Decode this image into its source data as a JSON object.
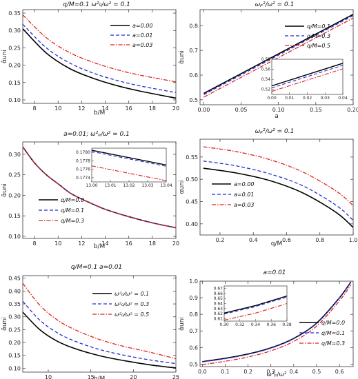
{
  "colors": {
    "black": "#000000",
    "blue": "#1f2fd6",
    "red": "#e0201b",
    "frame": "#333333"
  },
  "chart_data": [
    {
      "type": "line",
      "title": "q/M=0.1  ω²₀/ω² = 0.1",
      "xlabel": "b/M",
      "ylabel": "α̂uni",
      "xlim": [
        7,
        20
      ],
      "ylim": [
        0.09,
        0.36
      ],
      "xticks": [
        8,
        10,
        12,
        14,
        16,
        18,
        20
      ],
      "yticks": [
        0.1,
        0.15,
        0.2,
        0.25,
        0.3,
        0.35
      ],
      "legend_position": "top-right",
      "series": [
        {
          "name": "a=0.00",
          "color": "#000000",
          "dash": "solid",
          "x": [
            7,
            9,
            11,
            13,
            15,
            17,
            20
          ],
          "y": [
            0.305,
            0.235,
            0.19,
            0.162,
            0.141,
            0.125,
            0.105
          ]
        },
        {
          "name": "a=0.01",
          "color": "#1f2fd6",
          "dash": "dashed",
          "x": [
            7,
            9,
            11,
            13,
            15,
            17,
            20
          ],
          "y": [
            0.318,
            0.25,
            0.206,
            0.177,
            0.156,
            0.14,
            0.121
          ]
        },
        {
          "name": "a=0.03",
          "color": "#e0201b",
          "dash": "dashdot",
          "x": [
            7,
            9,
            11,
            13,
            15,
            17,
            20
          ],
          "y": [
            0.345,
            0.279,
            0.236,
            0.208,
            0.187,
            0.171,
            0.152
          ]
        }
      ]
    },
    {
      "type": "line",
      "title": "ωₚ²/ω² = 0.1",
      "xlabel": "a",
      "ylabel": "α̂uni",
      "xlim": [
        -0.005,
        0.2
      ],
      "ylim": [
        0.48,
        0.865
      ],
      "xticks": [
        0.0,
        0.05,
        0.1,
        0.15,
        0.2
      ],
      "yticks": [
        0.5,
        0.6,
        0.7,
        0.8
      ],
      "legend_position": "top-right",
      "series": [
        {
          "name": "q/M=0.1",
          "color": "#000000",
          "dash": "solid",
          "x": [
            0,
            0.2
          ],
          "y": [
            0.526,
            0.846
          ]
        },
        {
          "name": "q/M=0.3",
          "color": "#1f2fd6",
          "dash": "dashed",
          "x": [
            0,
            0.2
          ],
          "y": [
            0.521,
            0.841
          ]
        },
        {
          "name": "q/M=0.5",
          "color": "#e0201b",
          "dash": "dashdot",
          "x": [
            0,
            0.2
          ],
          "y": [
            0.511,
            0.831
          ]
        }
      ],
      "inset": {
        "xlim": [
          0,
          0.04
        ],
        "ylim": [
          0.51,
          0.58
        ],
        "xticks": [
          "0.00",
          "0.01",
          "0.02",
          "0.03",
          "0.04"
        ],
        "yticks": [
          "0.52",
          "0.54",
          "0.56",
          "0.58"
        ],
        "series": [
          {
            "color": "#000000",
            "dash": "solid",
            "x": [
              0,
              0.04
            ],
            "y": [
              0.527,
              0.572
            ]
          },
          {
            "color": "#1f2fd6",
            "dash": "dashed",
            "x": [
              0,
              0.04
            ],
            "y": [
              0.523,
              0.568
            ]
          },
          {
            "color": "#e0201b",
            "dash": "dashdot",
            "x": [
              0,
              0.04
            ],
            "y": [
              0.516,
              0.561
            ]
          }
        ]
      }
    },
    {
      "type": "line",
      "title": "a=0.01;  ω²ₚ/ω² = 0.1",
      "xlabel": "b/M",
      "ylabel": "α̂uni",
      "xlim": [
        7,
        20
      ],
      "ylim": [
        0.095,
        0.33
      ],
      "xticks": [
        8,
        10,
        12,
        14,
        16,
        18,
        20
      ],
      "yticks": [
        0.1,
        0.15,
        0.2,
        0.25,
        0.3
      ],
      "legend_position": "bottom-left",
      "series": [
        {
          "name": "q/M=0.0",
          "color": "#000000",
          "dash": "solid",
          "x": [
            7,
            8,
            9,
            10,
            11,
            12,
            13,
            14,
            16,
            18,
            20
          ],
          "y": [
            0.318,
            0.279,
            0.25,
            0.228,
            0.206,
            0.191,
            0.178,
            0.166,
            0.148,
            0.133,
            0.121
          ]
        },
        {
          "name": "q/M=0.1",
          "color": "#1f2fd6",
          "dash": "dashed",
          "x": [
            7,
            8,
            9,
            10,
            11,
            12,
            13,
            14,
            16,
            18,
            20
          ],
          "y": [
            0.318,
            0.279,
            0.25,
            0.228,
            0.206,
            0.191,
            0.178,
            0.166,
            0.148,
            0.133,
            0.121
          ]
        },
        {
          "name": "q/M=0.3",
          "color": "#e0201b",
          "dash": "dashdot",
          "x": [
            7,
            8,
            9,
            10,
            11,
            12,
            13,
            14,
            16,
            18,
            20
          ],
          "y": [
            0.3178,
            0.2788,
            0.2498,
            0.2278,
            0.2058,
            0.1908,
            0.1778,
            0.1658,
            0.1478,
            0.1328,
            0.1208
          ]
        }
      ],
      "inset": {
        "xlim": [
          13.0,
          13.04
        ],
        "ylim": [
          0.1773,
          0.1781
        ],
        "xticks": [
          "13.00",
          "13.01",
          "13.02",
          "13.03",
          "13.04"
        ],
        "yticks": [
          "0.1774",
          "0.1776",
          "0.1778",
          "0.1780"
        ],
        "series": [
          {
            "color": "#000000",
            "dash": "solid",
            "x": [
              13.0,
              13.04
            ],
            "y": [
              0.17805,
              0.1777
            ]
          },
          {
            "color": "#1f2fd6",
            "dash": "dashed",
            "x": [
              13.0,
              13.04
            ],
            "y": [
              0.17802,
              0.17767
            ]
          },
          {
            "color": "#e0201b",
            "dash": "dashdot",
            "x": [
              13.0,
              13.04
            ],
            "y": [
              0.17768,
              0.17733
            ]
          }
        ]
      }
    },
    {
      "type": "line",
      "title": "ωₚ²/ω² = 0.1",
      "xlabel": "q/M",
      "ylabel": "αuni",
      "xlim": [
        0.08,
        1.0
      ],
      "ylim": [
        0.375,
        0.59
      ],
      "xticks": [
        0.2,
        0.4,
        0.6,
        0.8,
        1.0
      ],
      "yticks": [
        0.4,
        0.45,
        0.5,
        0.55
      ],
      "legend_position": "bottom-left",
      "series": [
        {
          "name": "a=0.00",
          "color": "#000000",
          "dash": "solid",
          "x": [
            0.1,
            0.3,
            0.5,
            0.7,
            0.9,
            1.0
          ],
          "y": [
            0.525,
            0.514,
            0.497,
            0.469,
            0.425,
            0.392
          ]
        },
        {
          "name": "a=0.01",
          "color": "#1f2fd6",
          "dash": "dashed",
          "x": [
            0.1,
            0.3,
            0.5,
            0.7,
            0.9,
            1.0
          ],
          "y": [
            0.541,
            0.53,
            0.512,
            0.485,
            0.441,
            0.408
          ]
        },
        {
          "name": "a=0.03",
          "color": "#e0201b",
          "dash": "dashdot",
          "x": [
            0.1,
            0.3,
            0.5,
            0.7,
            0.9,
            1.0
          ],
          "y": [
            0.573,
            0.562,
            0.544,
            0.516,
            0.473,
            0.441
          ]
        }
      ]
    },
    {
      "type": "line",
      "title": "q/M=0.1   a=0.01",
      "xlabel": "b/M",
      "ylabel": "α̂uni",
      "xlim": [
        7,
        25
      ],
      "ylim": [
        0.085,
        0.46
      ],
      "xticks": [
        10,
        15,
        20,
        25
      ],
      "yticks": [
        0.1,
        0.15,
        0.2,
        0.25,
        0.3,
        0.35,
        0.4,
        0.45
      ],
      "legend_position": "top-right",
      "series": [
        {
          "name": "ω²₀/ω² = 0.1",
          "color": "#000000",
          "dash": "solid",
          "x": [
            7,
            9,
            11,
            13,
            16,
            19,
            22,
            25
          ],
          "y": [
            0.318,
            0.25,
            0.206,
            0.178,
            0.149,
            0.129,
            0.113,
            0.101
          ]
        },
        {
          "name": "ω²₀/ω² = 0.3",
          "color": "#1f2fd6",
          "dash": "dashed",
          "x": [
            7,
            9,
            11,
            13,
            16,
            19,
            22,
            25
          ],
          "y": [
            0.36,
            0.287,
            0.239,
            0.207,
            0.173,
            0.15,
            0.132,
            0.118
          ]
        },
        {
          "name": "ω²₀/ω² = 0.5",
          "color": "#e0201b",
          "dash": "dashdot",
          "x": [
            7,
            9,
            11,
            13,
            16,
            19,
            22,
            25
          ],
          "y": [
            0.43,
            0.345,
            0.289,
            0.252,
            0.212,
            0.184,
            0.162,
            0.137
          ]
        }
      ]
    },
    {
      "type": "line",
      "title": "a=0.01",
      "xlabel": "ω²ₚ/ω²",
      "ylabel": "α̂uni",
      "xlim": [
        -0.01,
        0.66
      ],
      "ylim": [
        0.485,
        1.0
      ],
      "xticks": [
        0.0,
        0.1,
        0.2,
        0.3,
        0.4,
        0.5,
        0.6
      ],
      "yticks": [
        0.5,
        0.6,
        0.7,
        0.8,
        0.9,
        1.0
      ],
      "legend_position": "bottom-right",
      "series": [
        {
          "name": "q/M=0.0",
          "color": "#000000",
          "dash": "solid",
          "x": [
            0,
            0.1,
            0.2,
            0.3,
            0.4,
            0.5,
            0.6,
            0.65
          ],
          "y": [
            0.515,
            0.535,
            0.561,
            0.598,
            0.655,
            0.747,
            0.9,
            0.995
          ]
        },
        {
          "name": "q/M=0.1",
          "color": "#1f2fd6",
          "dash": "dashed",
          "x": [
            0,
            0.1,
            0.2,
            0.3,
            0.4,
            0.5,
            0.6,
            0.65
          ],
          "y": [
            0.513,
            0.533,
            0.559,
            0.596,
            0.653,
            0.745,
            0.898,
            0.993
          ]
        },
        {
          "name": "q/M=0.3",
          "color": "#e0201b",
          "dash": "dashdot",
          "x": [
            0,
            0.1,
            0.2,
            0.3,
            0.4,
            0.5,
            0.6,
            0.65
          ],
          "y": [
            0.497,
            0.517,
            0.543,
            0.58,
            0.637,
            0.729,
            0.882,
            0.977
          ]
        }
      ],
      "inset": {
        "xlim": [
          0.3,
          0.38
        ],
        "ylim": [
          0.605,
          0.675
        ],
        "xticks": [
          "0.30",
          "0.32",
          "0.34",
          "0.36",
          "0.38"
        ],
        "yticks": [
          "0.61",
          "0.62",
          "0.63",
          "0.64",
          "0.65",
          "0.66",
          "0.67"
        ],
        "series": [
          {
            "color": "#000000",
            "dash": "solid",
            "x": [
              0.3,
              0.34,
              0.38
            ],
            "y": [
              0.621,
              0.636,
              0.655
            ]
          },
          {
            "color": "#1f2fd6",
            "dash": "dashed",
            "x": [
              0.3,
              0.34,
              0.38
            ],
            "y": [
              0.619,
              0.634,
              0.653
            ]
          },
          {
            "color": "#e0201b",
            "dash": "dashdot",
            "x": [
              0.3,
              0.34,
              0.38
            ],
            "y": [
              0.607,
              0.621,
              0.64
            ]
          }
        ]
      }
    }
  ]
}
